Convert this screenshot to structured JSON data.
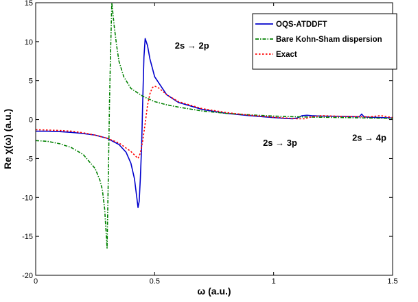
{
  "chart_data": {
    "type": "line",
    "title": "",
    "xlabel": "ω (a.u.)",
    "ylabel": "Re χ(ω) (a.u.)",
    "xlim": [
      0,
      1.5
    ],
    "ylim": [
      -20,
      15
    ],
    "grid": false,
    "legend_placement": "top-right",
    "x_ticks": [
      0,
      0.5,
      1,
      1.5
    ],
    "y_ticks": [
      -20,
      -15,
      -10,
      -5,
      0,
      5,
      10,
      15
    ],
    "x_tick_labels": [
      "0",
      "0.5",
      "1",
      "1.5"
    ],
    "y_tick_labels": [
      "-20",
      "-15",
      "-10",
      "-5",
      "0",
      "5",
      "10",
      "15"
    ],
    "series": [
      {
        "name": "OQS-ATDDFT",
        "color": "#0000cc",
        "style": "solid",
        "x": [
          0,
          0.05,
          0.1,
          0.15,
          0.2,
          0.25,
          0.3,
          0.35,
          0.38,
          0.4,
          0.415,
          0.425,
          0.43,
          0.435,
          0.44,
          0.445,
          0.45,
          0.455,
          0.46,
          0.47,
          0.48,
          0.5,
          0.55,
          0.6,
          0.7,
          0.8,
          0.9,
          1.0,
          1.05,
          1.08,
          1.1,
          1.12,
          1.14,
          1.16,
          1.2,
          1.3,
          1.36,
          1.37,
          1.38,
          1.4,
          1.45,
          1.5
        ],
        "y": [
          -1.5,
          -1.5,
          -1.55,
          -1.65,
          -1.8,
          -2.0,
          -2.4,
          -3.2,
          -4.2,
          -5.6,
          -7.6,
          -10.0,
          -11.3,
          -10.5,
          -7.5,
          -3.5,
          2.5,
          8.0,
          10.4,
          9.5,
          7.8,
          5.5,
          3.2,
          2.2,
          1.3,
          0.8,
          0.5,
          0.25,
          0.15,
          0.1,
          0.2,
          0.5,
          0.55,
          0.5,
          0.45,
          0.4,
          0.35,
          0.7,
          0.35,
          0.3,
          0.25,
          0.2
        ]
      },
      {
        "name": "Bare Kohn-Sham dispersion",
        "color": "#008000",
        "style": "dash-dot",
        "x": [
          0,
          0.05,
          0.1,
          0.15,
          0.2,
          0.25,
          0.27,
          0.28,
          0.29,
          0.3,
          0.305,
          0.31,
          0.315,
          0.32,
          0.33,
          0.34,
          0.35,
          0.37,
          0.4,
          0.45,
          0.5,
          0.55,
          0.6,
          0.7,
          0.8,
          0.9,
          1.0,
          1.1,
          1.2,
          1.3,
          1.4,
          1.5
        ],
        "y": [
          -2.7,
          -2.8,
          -3.1,
          -3.6,
          -4.5,
          -6.3,
          -7.8,
          -9.0,
          -11.5,
          -16.5,
          -8.0,
          2.0,
          9.0,
          15.0,
          12.0,
          9.5,
          7.5,
          5.5,
          4.0,
          3.0,
          2.3,
          1.9,
          1.6,
          1.1,
          0.8,
          0.6,
          0.45,
          0.35,
          0.3,
          0.25,
          0.2,
          0.15
        ]
      },
      {
        "name": "Exact",
        "color": "#ff0000",
        "style": "dotted",
        "x": [
          0,
          0.05,
          0.1,
          0.15,
          0.2,
          0.25,
          0.3,
          0.35,
          0.4,
          0.43,
          0.44,
          0.45,
          0.46,
          0.47,
          0.48,
          0.49,
          0.5,
          0.52,
          0.55,
          0.6,
          0.7,
          0.8,
          0.9,
          1.0,
          1.1,
          1.13,
          1.16,
          1.2,
          1.3,
          1.4,
          1.45,
          1.5
        ],
        "y": [
          -1.3,
          -1.35,
          -1.4,
          -1.5,
          -1.7,
          -2.0,
          -2.4,
          -3.0,
          -4.1,
          -5.0,
          -4.3,
          -2.7,
          -0.5,
          1.8,
          3.3,
          4.1,
          4.3,
          4.0,
          3.2,
          2.3,
          1.4,
          0.9,
          0.55,
          0.3,
          0.1,
          0.1,
          0.35,
          0.5,
          0.4,
          0.35,
          0.5,
          0.25
        ]
      }
    ],
    "annotations": [
      {
        "text": "2s → 2p",
        "x": 0.585,
        "y": 9.1
      },
      {
        "text": "2s → 3p",
        "x": 0.955,
        "y": -3.4
      },
      {
        "text": "2s → 4p",
        "x": 1.33,
        "y": -2.7
      }
    ]
  }
}
